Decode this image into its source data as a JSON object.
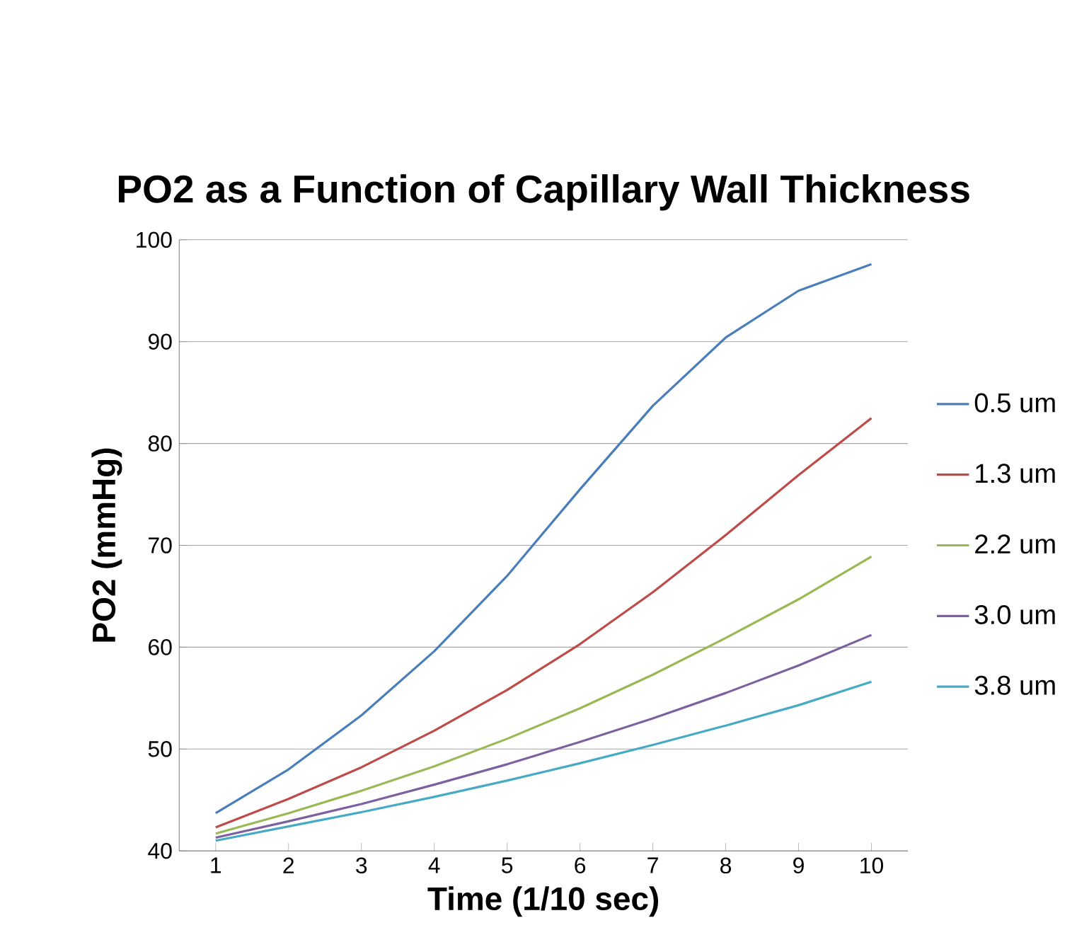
{
  "chart_data": {
    "type": "line",
    "title": "PO2 as a Function of Capillary Wall Thickness",
    "xlabel": "Time (1/10 sec)",
    "ylabel": "PO2 (mmHg)",
    "categories": [
      "1",
      "2",
      "3",
      "4",
      "5",
      "6",
      "7",
      "8",
      "9",
      "10"
    ],
    "ylim": [
      40,
      100
    ],
    "yticks": [
      40,
      50,
      60,
      70,
      80,
      90,
      100
    ],
    "grid": "y",
    "legend": "right",
    "marker": "none",
    "line_style": "solid",
    "series": [
      {
        "name": "0.5 um",
        "color": "#4a7ebb",
        "values": [
          43.7,
          48.0,
          53.3,
          59.6,
          67.0,
          75.5,
          83.7,
          90.4,
          95.0,
          97.6
        ]
      },
      {
        "name": "1.3 um",
        "color": "#be4b48",
        "values": [
          42.3,
          45.1,
          48.2,
          51.8,
          55.8,
          60.3,
          65.4,
          71.0,
          76.9,
          82.5
        ]
      },
      {
        "name": "2.2 um",
        "color": "#98b954",
        "values": [
          41.7,
          43.7,
          45.9,
          48.3,
          51.0,
          54.0,
          57.3,
          60.9,
          64.7,
          68.9
        ]
      },
      {
        "name": "3.0 um",
        "color": "#7d60a0",
        "values": [
          41.3,
          42.9,
          44.6,
          46.5,
          48.5,
          50.7,
          53.0,
          55.5,
          58.2,
          61.2
        ]
      },
      {
        "name": "3.8 um",
        "color": "#46aac5",
        "values": [
          41.0,
          42.4,
          43.8,
          45.3,
          46.9,
          48.6,
          50.4,
          52.3,
          54.3,
          56.6
        ]
      }
    ]
  }
}
